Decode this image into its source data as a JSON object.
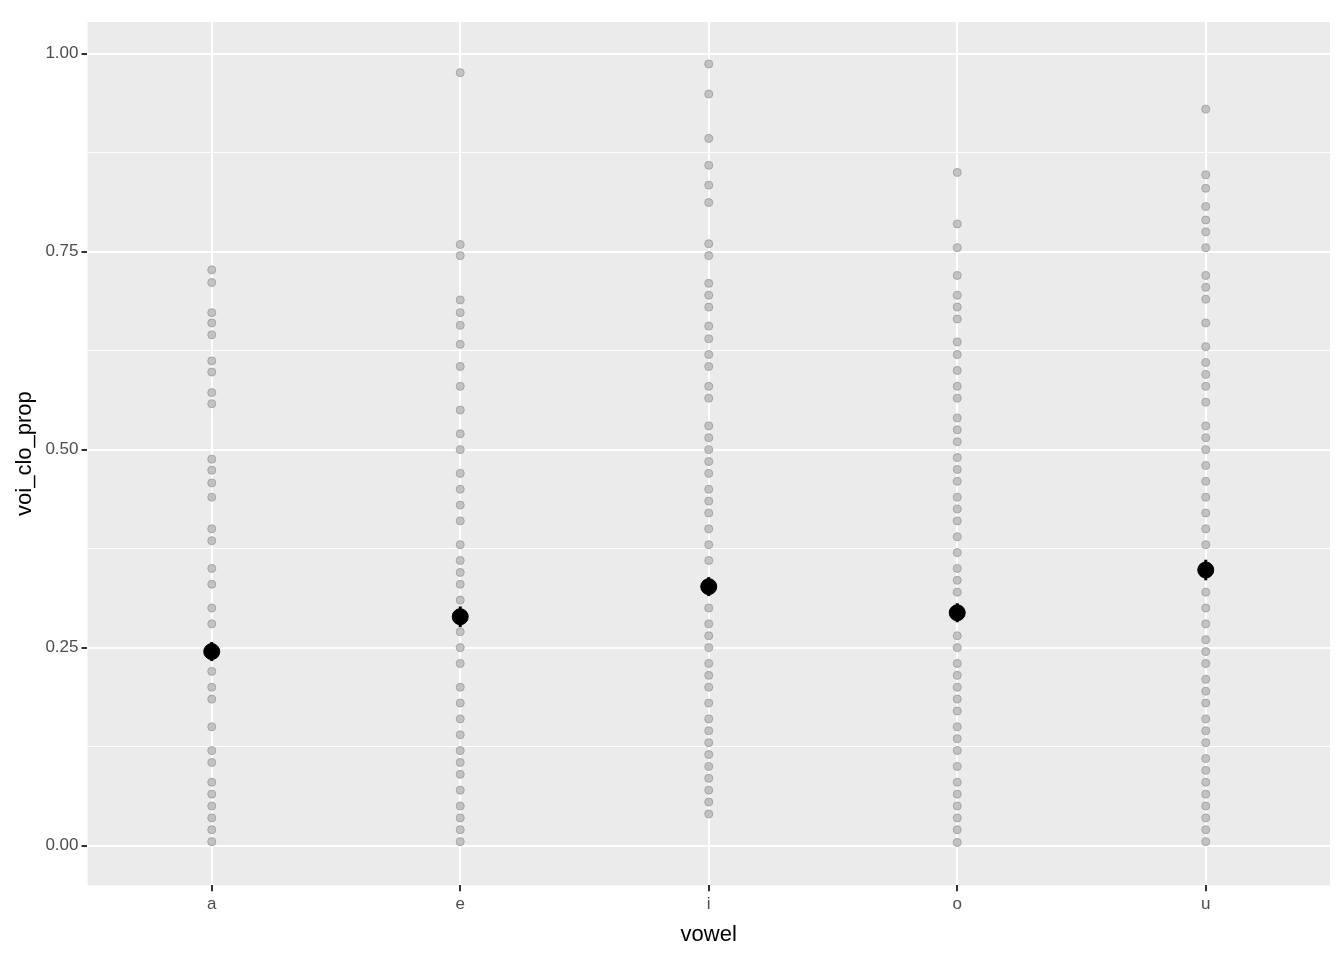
{
  "chart_data": {
    "type": "scatter",
    "xlabel": "vowel",
    "ylabel": "voi_clo_prop",
    "categories": [
      "a",
      "e",
      "i",
      "o",
      "u"
    ],
    "ylim": [
      -0.05,
      1.04
    ],
    "yticks": [
      {
        "value": 0,
        "label": "0.00"
      },
      {
        "value": 0.125,
        "label": null
      },
      {
        "value": 0.25,
        "label": "0.25"
      },
      {
        "value": 0.375,
        "label": null
      },
      {
        "value": 0.5,
        "label": "0.50"
      },
      {
        "value": 0.625,
        "label": null
      },
      {
        "value": 0.75,
        "label": "0.75"
      },
      {
        "value": 0.875,
        "label": null
      },
      {
        "value": 1,
        "label": "1.00"
      }
    ],
    "grid": true,
    "legend": false,
    "marker": "circle",
    "series": [
      {
        "color": "#c2c2c2",
        "x": [
          "a",
          "a",
          "a",
          "a",
          "a",
          "a",
          "a",
          "a",
          "a",
          "a",
          "a",
          "a",
          "a",
          "a",
          "a",
          "a",
          "a",
          "a",
          "a",
          "a",
          "a",
          "a",
          "a",
          "a",
          "a",
          "a",
          "a",
          "a",
          "a",
          "a",
          "a"
        ],
        "values": [
          0.727,
          0.711,
          0.673,
          0.66,
          0.645,
          0.612,
          0.598,
          0.572,
          0.558,
          0.488,
          0.474,
          0.458,
          0.44,
          0.4,
          0.385,
          0.35,
          0.33,
          0.3,
          0.28,
          0.22,
          0.2,
          0.185,
          0.15,
          0.12,
          0.105,
          0.08,
          0.065,
          0.05,
          0.035,
          0.02,
          0.005
        ]
      },
      {
        "color": "#c2c2c2",
        "x": [
          "e",
          "e",
          "e",
          "e",
          "e",
          "e",
          "e",
          "e",
          "e",
          "e",
          "e",
          "e",
          "e",
          "e",
          "e",
          "e",
          "e",
          "e",
          "e",
          "e",
          "e",
          "e",
          "e",
          "e",
          "e",
          "e",
          "e",
          "e",
          "e",
          "e",
          "e",
          "e",
          "e",
          "e",
          "e",
          "e"
        ],
        "values": [
          0.976,
          0.759,
          0.745,
          0.689,
          0.673,
          0.657,
          0.633,
          0.605,
          0.58,
          0.55,
          0.52,
          0.5,
          0.47,
          0.45,
          0.43,
          0.41,
          0.38,
          0.36,
          0.345,
          0.33,
          0.31,
          0.27,
          0.25,
          0.23,
          0.2,
          0.18,
          0.16,
          0.14,
          0.12,
          0.105,
          0.09,
          0.07,
          0.05,
          0.035,
          0.02,
          0.005
        ]
      },
      {
        "color": "#c2c2c2",
        "x": [
          "i",
          "i",
          "i",
          "i",
          "i",
          "i",
          "i",
          "i",
          "i",
          "i",
          "i",
          "i",
          "i",
          "i",
          "i",
          "i",
          "i",
          "i",
          "i",
          "i",
          "i",
          "i",
          "i",
          "i",
          "i",
          "i",
          "i",
          "i",
          "i",
          "i",
          "i",
          "i",
          "i",
          "i",
          "i",
          "i",
          "i",
          "i",
          "i",
          "i",
          "i",
          "i",
          "i",
          "i",
          "i"
        ],
        "values": [
          0.987,
          0.949,
          0.893,
          0.859,
          0.834,
          0.812,
          0.76,
          0.745,
          0.71,
          0.695,
          0.68,
          0.656,
          0.64,
          0.62,
          0.605,
          0.58,
          0.565,
          0.53,
          0.515,
          0.5,
          0.485,
          0.47,
          0.45,
          0.435,
          0.42,
          0.4,
          0.38,
          0.36,
          0.3,
          0.28,
          0.265,
          0.25,
          0.23,
          0.215,
          0.2,
          0.18,
          0.16,
          0.145,
          0.13,
          0.115,
          0.1,
          0.085,
          0.07,
          0.055,
          0.04
        ]
      },
      {
        "color": "#c2c2c2",
        "x": [
          "o",
          "o",
          "o",
          "o",
          "o",
          "o",
          "o",
          "o",
          "o",
          "o",
          "o",
          "o",
          "o",
          "o",
          "o",
          "o",
          "o",
          "o",
          "o",
          "o",
          "o",
          "o",
          "o",
          "o",
          "o",
          "o",
          "o",
          "o",
          "o",
          "o",
          "o",
          "o",
          "o",
          "o",
          "o",
          "o",
          "o",
          "o",
          "o",
          "o",
          "o",
          "o",
          "o"
        ],
        "values": [
          0.85,
          0.785,
          0.755,
          0.72,
          0.695,
          0.68,
          0.665,
          0.636,
          0.62,
          0.6,
          0.58,
          0.565,
          0.54,
          0.525,
          0.51,
          0.49,
          0.475,
          0.46,
          0.44,
          0.425,
          0.41,
          0.39,
          0.37,
          0.35,
          0.335,
          0.32,
          0.265,
          0.25,
          0.23,
          0.215,
          0.2,
          0.185,
          0.17,
          0.15,
          0.135,
          0.12,
          0.1,
          0.08,
          0.065,
          0.05,
          0.035,
          0.02,
          0.004
        ]
      },
      {
        "color": "#c2c2c2",
        "x": [
          "u",
          "u",
          "u",
          "u",
          "u",
          "u",
          "u",
          "u",
          "u",
          "u",
          "u",
          "u",
          "u",
          "u",
          "u",
          "u",
          "u",
          "u",
          "u",
          "u",
          "u",
          "u",
          "u",
          "u",
          "u",
          "u",
          "u",
          "u",
          "u",
          "u",
          "u",
          "u",
          "u",
          "u",
          "u",
          "u",
          "u",
          "u",
          "u",
          "u",
          "u",
          "u",
          "u",
          "u",
          "u"
        ],
        "values": [
          0.93,
          0.847,
          0.83,
          0.807,
          0.79,
          0.775,
          0.755,
          0.72,
          0.705,
          0.69,
          0.66,
          0.63,
          0.61,
          0.595,
          0.58,
          0.56,
          0.53,
          0.515,
          0.5,
          0.48,
          0.46,
          0.44,
          0.42,
          0.4,
          0.38,
          0.32,
          0.3,
          0.28,
          0.26,
          0.245,
          0.23,
          0.21,
          0.195,
          0.18,
          0.16,
          0.145,
          0.13,
          0.11,
          0.095,
          0.08,
          0.065,
          0.05,
          0.035,
          0.02,
          0.005
        ]
      },
      {
        "color": "#000000",
        "x": [
          "a",
          "e",
          "i",
          "o",
          "u"
        ],
        "values": [
          0.245,
          0.289,
          0.327,
          0.294,
          0.348
        ],
        "errors": [
          0.012,
          0.013,
          0.012,
          0.012,
          0.013
        ]
      }
    ]
  }
}
